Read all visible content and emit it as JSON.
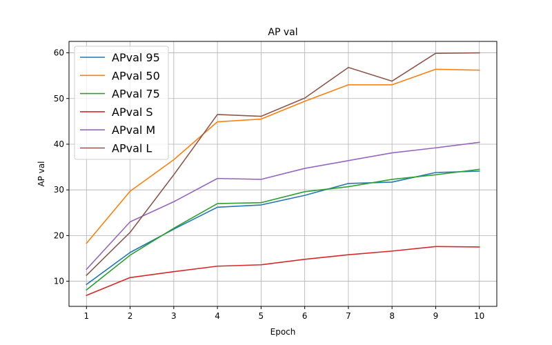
{
  "chart_data": {
    "type": "line",
    "title": "AP val",
    "xlabel": "Epoch",
    "ylabel": "AP val",
    "x": [
      1,
      2,
      3,
      4,
      5,
      6,
      7,
      8,
      9,
      10
    ],
    "xlim": [
      0.6,
      10.4
    ],
    "ylim": [
      4.5,
      62.5
    ],
    "yticks": [
      10,
      20,
      30,
      40,
      50,
      60
    ],
    "grid": true,
    "legend": "upper-left",
    "series": [
      {
        "name": "APval 95",
        "color": "#1f77b4",
        "values": [
          9.3,
          16.3,
          21.4,
          26.2,
          26.7,
          28.8,
          31.4,
          31.7,
          33.8,
          34.1
        ]
      },
      {
        "name": "APval 50",
        "color": "#ff7f0e",
        "values": [
          18.3,
          29.7,
          36.6,
          44.9,
          45.5,
          49.4,
          53.0,
          53.0,
          56.4,
          56.2
        ]
      },
      {
        "name": "APval 75",
        "color": "#2ca02c",
        "values": [
          8.1,
          15.7,
          21.6,
          27.0,
          27.2,
          29.6,
          30.7,
          32.3,
          33.3,
          34.5
        ]
      },
      {
        "name": "APval S",
        "color": "#d62728",
        "values": [
          6.9,
          10.8,
          12.1,
          13.3,
          13.6,
          14.8,
          15.8,
          16.6,
          17.6,
          17.5
        ]
      },
      {
        "name": "APval M",
        "color": "#9467bd",
        "values": [
          12.6,
          23.0,
          27.4,
          32.5,
          32.3,
          34.7,
          36.4,
          38.1,
          39.2,
          40.4
        ]
      },
      {
        "name": "APval L",
        "color": "#8c564b",
        "values": [
          11.3,
          20.7,
          33.3,
          46.5,
          46.1,
          50.1,
          56.8,
          53.8,
          59.9,
          60.0
        ]
      }
    ]
  }
}
